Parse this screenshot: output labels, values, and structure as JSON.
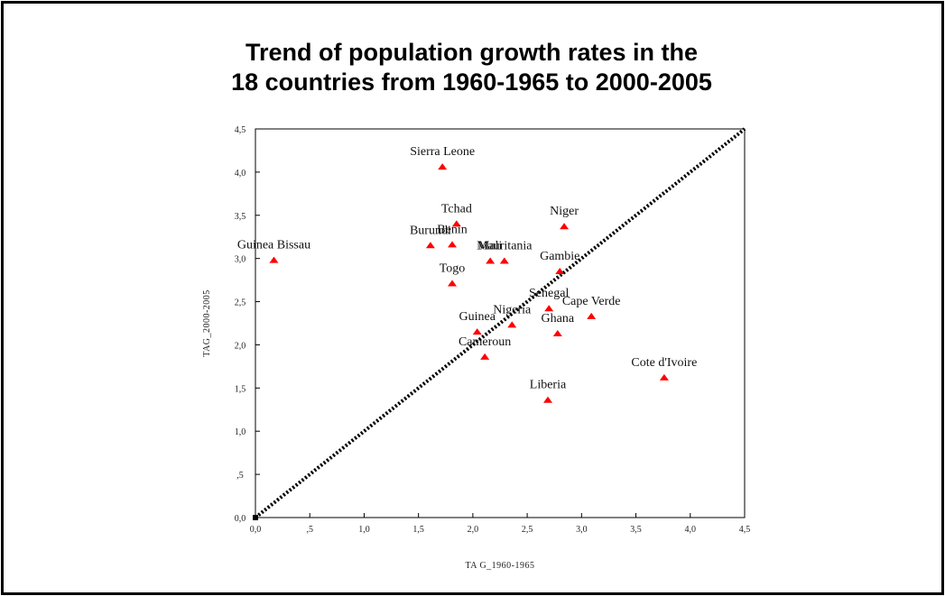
{
  "title_line1": "Trend of population growth rates in the",
  "title_line2": "18 countries from 1960-1965 to 2000-2005",
  "colors": {
    "marker": "#ff0000",
    "diagonal": "#000000",
    "frame": "#000000"
  },
  "chart_data": {
    "type": "scatter",
    "xlabel": "TA G_1960-1965",
    "ylabel": "TAG_2000-2005",
    "xlim": [
      0,
      4.5
    ],
    "ylim": [
      0,
      4.5
    ],
    "x_ticks": [
      "0,0",
      ",5",
      "1,0",
      "1,5",
      "2,0",
      "2,5",
      "3,0",
      "3,5",
      "4,0",
      "4,5"
    ],
    "y_ticks": [
      "0,0",
      ",5",
      "1,0",
      "1,5",
      "2,0",
      "2,5",
      "3,0",
      "3,5",
      "4,0",
      "4,5"
    ],
    "grid": false,
    "reference_line": "y = x (dotted)",
    "points": [
      {
        "label": "Sierra Leone",
        "x": 1.72,
        "y": 4.06
      },
      {
        "label": "Tchad",
        "x": 1.85,
        "y": 3.4
      },
      {
        "label": "Niger",
        "x": 2.84,
        "y": 3.37
      },
      {
        "label": "Burundi",
        "x": 1.61,
        "y": 3.15
      },
      {
        "label": "Benin",
        "x": 1.81,
        "y": 3.16
      },
      {
        "label": "Guinea Bissau",
        "x": 0.17,
        "y": 2.98
      },
      {
        "label": "Mali",
        "x": 2.16,
        "y": 2.97
      },
      {
        "label": "Mauritania",
        "x": 2.29,
        "y": 2.97
      },
      {
        "label": "Gambie",
        "x": 2.8,
        "y": 2.85
      },
      {
        "label": "Togo",
        "x": 1.81,
        "y": 2.71
      },
      {
        "label": "Senegal",
        "x": 2.7,
        "y": 2.42
      },
      {
        "label": "Cape Verde",
        "x": 3.09,
        "y": 2.33
      },
      {
        "label": "Nigeria",
        "x": 2.36,
        "y": 2.23
      },
      {
        "label": "Guinea",
        "x": 2.04,
        "y": 2.15
      },
      {
        "label": "Ghana",
        "x": 2.78,
        "y": 2.13
      },
      {
        "label": "Cameroun",
        "x": 2.11,
        "y": 1.86
      },
      {
        "label": "Cote d'Ivoire",
        "x": 3.76,
        "y": 1.62
      },
      {
        "label": "Liberia",
        "x": 2.69,
        "y": 1.36
      }
    ]
  }
}
